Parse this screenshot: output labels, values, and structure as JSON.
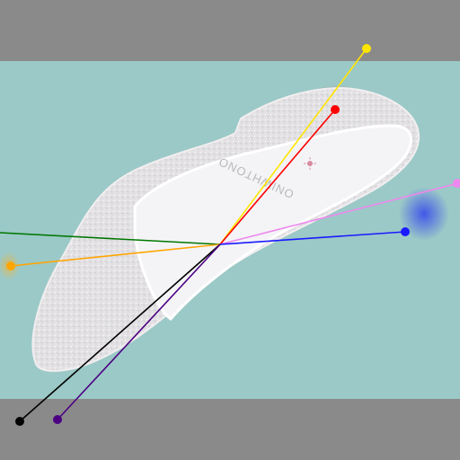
{
  "image": {
    "subject": "glitter-shoe",
    "insole_print": "ONIWHTONO",
    "colors": {
      "background": "#9bc9c7",
      "letterbox": "#8a8a8a",
      "glitter": "#e6e6ea",
      "insole": "#f4f4f6"
    }
  },
  "overlay": {
    "center_color": "#8a8a8a",
    "rays": [
      {
        "name": "ray-yellow",
        "color": "#ffe600"
      },
      {
        "name": "ray-red",
        "color": "#ff0000"
      },
      {
        "name": "ray-violet",
        "color": "#ee88ee"
      },
      {
        "name": "ray-blue",
        "color": "#1a1aff"
      },
      {
        "name": "ray-green",
        "color": "#007700"
      },
      {
        "name": "ray-orange",
        "color": "#ffa500"
      },
      {
        "name": "ray-black",
        "color": "#000000"
      },
      {
        "name": "ray-indigo",
        "color": "#4b0082"
      }
    ]
  }
}
